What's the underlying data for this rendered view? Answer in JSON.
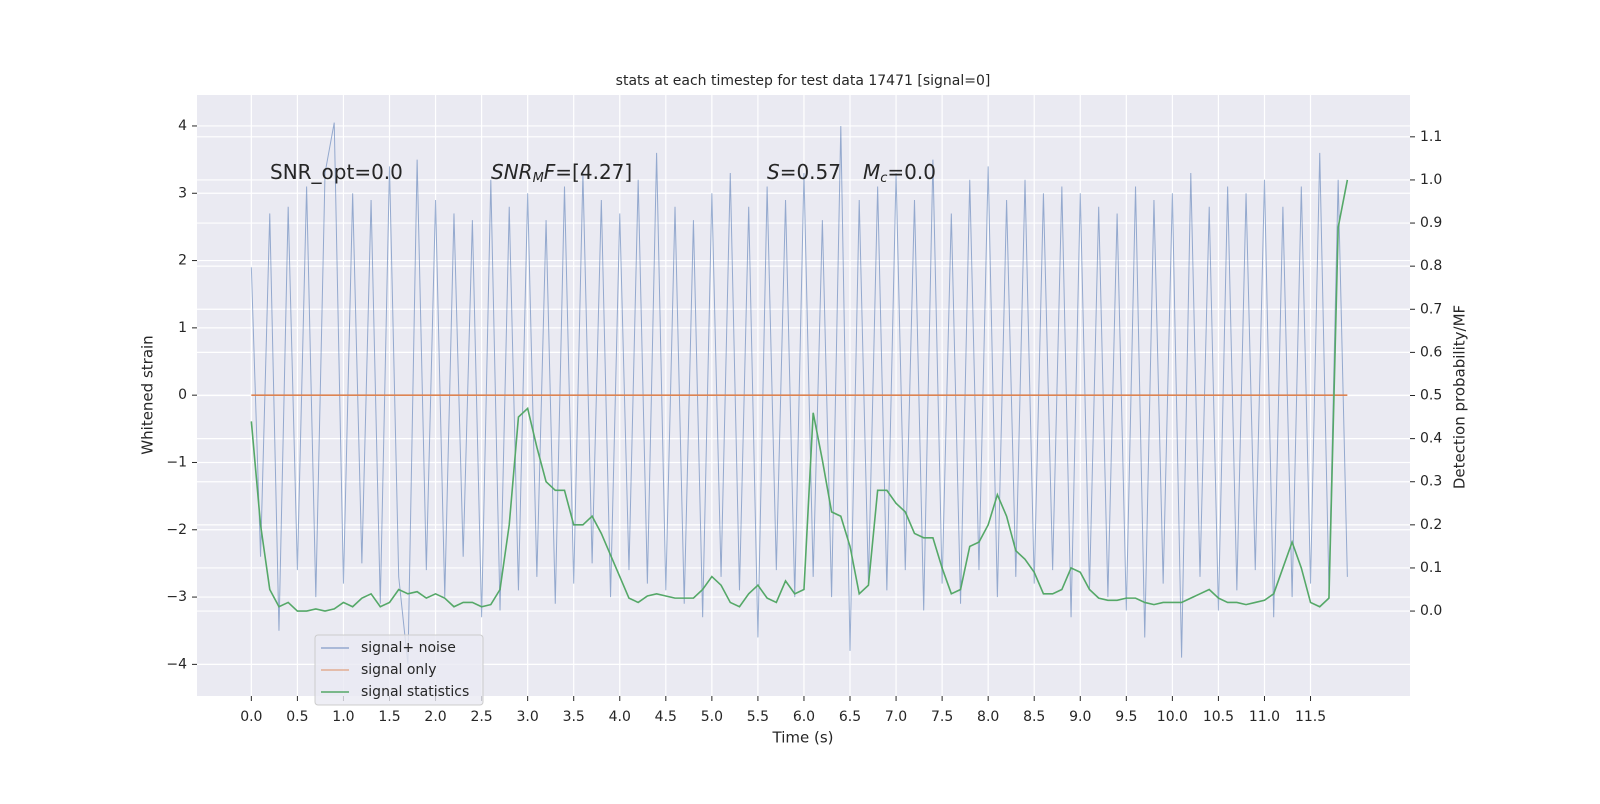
{
  "chart_data": {
    "type": "line",
    "title": "stats at each timestep for test data 17471 [signal=0]",
    "x_label": "Time (s)",
    "y_label": "Whitened strain",
    "y2_label": "Detection probability/MF",
    "annotations": [
      [
        "SNR_opt=0.0"
      ],
      [
        "SNR",
        "M",
        "F",
        "=[4.27]"
      ],
      [
        "S",
        "=0.57",
        "M",
        "c",
        "=0.0"
      ]
    ],
    "x": [
      0.0,
      0.1,
      0.2,
      0.3,
      0.4,
      0.5,
      0.6,
      0.7,
      0.8,
      0.9,
      1.0,
      1.1,
      1.2,
      1.3,
      1.4,
      1.5,
      1.6,
      1.7,
      1.8,
      1.9,
      2.0,
      2.1,
      2.2,
      2.3,
      2.4,
      2.5,
      2.6,
      2.7,
      2.8,
      2.9,
      3.0,
      3.1,
      3.2,
      3.3,
      3.4,
      3.5,
      3.6,
      3.7,
      3.8,
      3.9,
      4.0,
      4.1,
      4.2,
      4.3,
      4.4,
      4.5,
      4.6,
      4.7,
      4.8,
      4.9,
      5.0,
      5.1,
      5.2,
      5.3,
      5.4,
      5.5,
      5.6,
      5.7,
      5.8,
      5.9,
      6.0,
      6.1,
      6.2,
      6.3,
      6.4,
      6.5,
      6.6,
      6.7,
      6.8,
      6.9,
      7.0,
      7.1,
      7.2,
      7.3,
      7.4,
      7.5,
      7.6,
      7.7,
      7.8,
      7.9,
      8.0,
      8.1,
      8.2,
      8.3,
      8.4,
      8.5,
      8.6,
      8.7,
      8.8,
      8.9,
      9.0,
      9.1,
      9.2,
      9.3,
      9.4,
      9.5,
      9.6,
      9.7,
      9.8,
      9.9,
      10.0,
      10.1,
      10.2,
      10.3,
      10.4,
      10.5,
      10.6,
      10.7,
      10.8,
      10.9,
      11.0,
      11.1,
      11.2,
      11.3,
      11.4,
      11.5,
      11.6,
      11.7,
      11.8,
      11.9
    ],
    "series": [
      {
        "name": "signal+ noise",
        "color": "#4c72b0",
        "axis": "y",
        "values": [
          1.9,
          -2.4,
          2.7,
          -3.5,
          2.8,
          -2.6,
          3.1,
          -3.0,
          3.3,
          4.05,
          -2.8,
          3.0,
          -2.5,
          2.9,
          -3.1,
          3.4,
          -2.7,
          -4.0,
          3.5,
          -2.6,
          2.9,
          -3.0,
          2.7,
          -2.4,
          2.6,
          -3.3,
          3.2,
          -3.2,
          2.8,
          -2.9,
          3.0,
          -2.7,
          2.6,
          -3.1,
          3.1,
          -2.8,
          3.3,
          -2.5,
          2.9,
          -3.0,
          2.7,
          -2.6,
          3.2,
          -2.8,
          3.6,
          -2.9,
          2.8,
          -3.1,
          2.6,
          -3.3,
          3.0,
          -2.7,
          3.3,
          -2.9,
          2.8,
          -3.6,
          3.1,
          -2.6,
          2.9,
          -3.0,
          3.3,
          -2.7,
          2.6,
          -3.0,
          4.0,
          -3.8,
          2.9,
          -2.8,
          3.1,
          -2.9,
          3.3,
          -2.6,
          2.9,
          -3.2,
          3.5,
          -2.8,
          2.7,
          -3.1,
          3.2,
          -2.6,
          3.4,
          -3.0,
          2.9,
          -2.7,
          3.2,
          -2.8,
          3.0,
          -2.6,
          3.1,
          -3.3,
          3.0,
          -2.9,
          2.8,
          -3.0,
          2.7,
          -3.2,
          3.1,
          -3.6,
          2.9,
          -2.8,
          3.0,
          -3.9,
          3.3,
          -2.7,
          2.8,
          -3.2,
          3.1,
          -2.9,
          3.0,
          -2.6,
          3.2,
          -3.3,
          2.8,
          -3.0,
          3.1,
          -2.8,
          3.6,
          -2.9,
          3.2,
          -2.7
        ]
      },
      {
        "name": "signal only",
        "color": "#dd8452",
        "axis": "y",
        "values": [
          0,
          0,
          0,
          0,
          0,
          0,
          0,
          0,
          0,
          0,
          0,
          0,
          0,
          0,
          0,
          0,
          0,
          0,
          0,
          0,
          0,
          0,
          0,
          0,
          0,
          0,
          0,
          0,
          0,
          0,
          0,
          0,
          0,
          0,
          0,
          0,
          0,
          0,
          0,
          0,
          0,
          0,
          0,
          0,
          0,
          0,
          0,
          0,
          0,
          0,
          0,
          0,
          0,
          0,
          0,
          0,
          0,
          0,
          0,
          0,
          0,
          0,
          0,
          0,
          0,
          0,
          0,
          0,
          0,
          0,
          0,
          0,
          0,
          0,
          0,
          0,
          0,
          0,
          0,
          0,
          0,
          0,
          0,
          0,
          0,
          0,
          0,
          0,
          0,
          0,
          0,
          0,
          0,
          0,
          0,
          0,
          0,
          0,
          0,
          0,
          0,
          0,
          0,
          0,
          0,
          0,
          0,
          0,
          0,
          0,
          0,
          0,
          0,
          0,
          0,
          0,
          0,
          0,
          0,
          0
        ]
      },
      {
        "name": "signal statistics",
        "color": "#55a868",
        "axis": "y2",
        "values": [
          0.44,
          0.2,
          0.05,
          0.01,
          0.02,
          0.0,
          0.0,
          0.005,
          0.0,
          0.005,
          0.02,
          0.01,
          0.03,
          0.04,
          0.01,
          0.02,
          0.05,
          0.04,
          0.045,
          0.03,
          0.04,
          0.03,
          0.01,
          0.02,
          0.02,
          0.01,
          0.015,
          0.05,
          0.2,
          0.45,
          0.47,
          0.38,
          0.3,
          0.28,
          0.28,
          0.2,
          0.2,
          0.22,
          0.18,
          0.13,
          0.08,
          0.03,
          0.02,
          0.035,
          0.04,
          0.035,
          0.03,
          0.03,
          0.03,
          0.05,
          0.08,
          0.06,
          0.02,
          0.01,
          0.04,
          0.06,
          0.03,
          0.02,
          0.07,
          0.04,
          0.05,
          0.46,
          0.35,
          0.23,
          0.22,
          0.15,
          0.04,
          0.06,
          0.28,
          0.28,
          0.25,
          0.23,
          0.18,
          0.17,
          0.17,
          0.1,
          0.04,
          0.05,
          0.15,
          0.16,
          0.2,
          0.27,
          0.22,
          0.14,
          0.12,
          0.09,
          0.04,
          0.04,
          0.05,
          0.1,
          0.09,
          0.05,
          0.03,
          0.025,
          0.025,
          0.03,
          0.03,
          0.02,
          0.015,
          0.02,
          0.02,
          0.02,
          0.03,
          0.04,
          0.05,
          0.03,
          0.02,
          0.02,
          0.015,
          0.02,
          0.025,
          0.04,
          0.1,
          0.16,
          0.1,
          0.02,
          0.01,
          0.03,
          0.89,
          1.0
        ]
      }
    ],
    "xlim": [
      -0.59,
      12.58
    ],
    "xticks": [
      {
        "value": 0,
        "label": "0.0"
      },
      0.5,
      {
        "value": 1,
        "label": "1.0"
      },
      1.5,
      {
        "value": 2,
        "label": "2.0"
      },
      2.5,
      {
        "value": 3,
        "label": "3.0"
      },
      3.5,
      {
        "value": 4,
        "label": "4.0"
      },
      4.5,
      {
        "value": 5,
        "label": "5.0"
      },
      5.5,
      {
        "value": 6,
        "label": "6.0"
      },
      6.5,
      {
        "value": 7,
        "label": "7.0"
      },
      7.5,
      {
        "value": 8,
        "label": "8.0"
      },
      8.5,
      {
        "value": 9,
        "label": "9.0"
      },
      9.5,
      {
        "value": 10,
        "label": "10.0"
      },
      10.5,
      {
        "value": 11,
        "label": "11.0"
      },
      11.5
    ],
    "ylim": [
      -4.47,
      4.46
    ],
    "yticks": [
      {
        "value": -4,
        "label": "−4"
      },
      {
        "value": -3,
        "label": "−3"
      },
      {
        "value": -2,
        "label": "−2"
      },
      {
        "value": -1,
        "label": "−1"
      },
      0,
      1,
      2,
      3,
      4
    ],
    "y2lim": [
      -0.197,
      1.197
    ],
    "y2ticks": [
      {
        "value": 0,
        "label": "0.0"
      },
      0.1,
      0.2,
      0.3,
      0.4,
      0.5,
      0.6,
      0.7,
      0.8,
      0.9,
      {
        "value": 1,
        "label": "1.0"
      },
      1.1
    ],
    "grid": true,
    "legend": "lower left"
  }
}
